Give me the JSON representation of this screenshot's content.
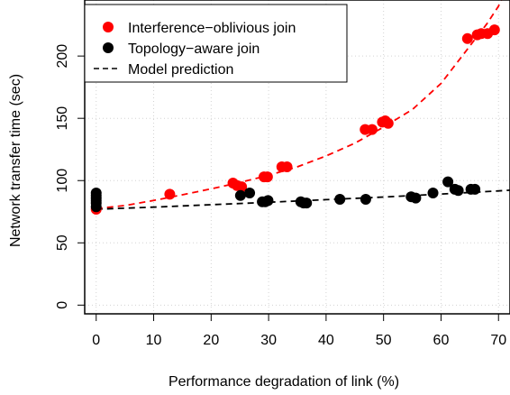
{
  "chart_data": {
    "type": "scatter",
    "title": "",
    "xlabel": "Performance degradation of link (%)",
    "ylabel": "Network transfer time (sec)",
    "xlim": [
      -2,
      72
    ],
    "ylim": [
      -7,
      245
    ],
    "xticks": [
      "0",
      "10",
      "20",
      "30",
      "40",
      "50",
      "60",
      "70"
    ],
    "xtick_values": [
      0,
      10,
      20,
      30,
      40,
      50,
      60,
      70
    ],
    "yticks": [
      "0",
      "50",
      "100",
      "150",
      "200"
    ],
    "ytick_values": [
      0,
      50,
      100,
      150,
      200
    ],
    "grid": true,
    "legend_position": "top-left",
    "series": [
      {
        "name": "Interference−oblivious join",
        "kind": "points",
        "color": "#ff0000",
        "points": [
          [
            0,
            77
          ],
          [
            12.8,
            89
          ],
          [
            23.8,
            98
          ],
          [
            24.5,
            96
          ],
          [
            25.3,
            95
          ],
          [
            29.2,
            103
          ],
          [
            29.8,
            103
          ],
          [
            32.3,
            111
          ],
          [
            33.2,
            111
          ],
          [
            46.8,
            141
          ],
          [
            48,
            141
          ],
          [
            49.8,
            147
          ],
          [
            50.3,
            148
          ],
          [
            50.8,
            146
          ],
          [
            64.6,
            214
          ],
          [
            66.3,
            217
          ],
          [
            67,
            218
          ],
          [
            68.1,
            218
          ],
          [
            69.3,
            221
          ]
        ]
      },
      {
        "name": "Topology−aware join",
        "kind": "points",
        "color": "#000000",
        "points": [
          [
            0,
            79
          ],
          [
            0,
            82
          ],
          [
            0,
            84
          ],
          [
            0,
            86
          ],
          [
            0,
            88
          ],
          [
            0,
            90
          ],
          [
            25.1,
            88
          ],
          [
            26.7,
            90
          ],
          [
            28.9,
            83
          ],
          [
            29.4,
            83
          ],
          [
            29.9,
            84
          ],
          [
            35.6,
            83
          ],
          [
            36.1,
            82
          ],
          [
            36.6,
            82
          ],
          [
            42.4,
            85
          ],
          [
            46.9,
            85
          ],
          [
            54.8,
            87
          ],
          [
            55.6,
            86
          ],
          [
            58.6,
            90
          ],
          [
            61.2,
            99
          ],
          [
            62.4,
            93
          ],
          [
            63,
            92
          ],
          [
            65.2,
            93
          ],
          [
            65.9,
            93
          ]
        ]
      },
      {
        "name": "",
        "kind": "curve",
        "color": "#ff0000",
        "dash": "dashed",
        "x": [
          0,
          5,
          10,
          15,
          20,
          25,
          30,
          35,
          40,
          45,
          50,
          55,
          60,
          62,
          64,
          66,
          68,
          70,
          71,
          72
        ],
        "values": [
          77.5,
          80,
          84,
          88.6,
          93.4,
          98.5,
          104.2,
          111,
          119.8,
          130,
          143,
          157,
          178,
          190,
          202,
          214,
          226,
          240,
          250,
          260
        ]
      },
      {
        "name": "Model prediction",
        "kind": "curve",
        "color": "#000000",
        "dash": "dashed",
        "x": [
          0,
          10,
          20,
          30,
          40,
          50,
          60,
          70,
          72
        ],
        "values": [
          77,
          78.7,
          80.6,
          82.6,
          84.7,
          86.8,
          89.2,
          91.7,
          92.3
        ]
      }
    ]
  }
}
